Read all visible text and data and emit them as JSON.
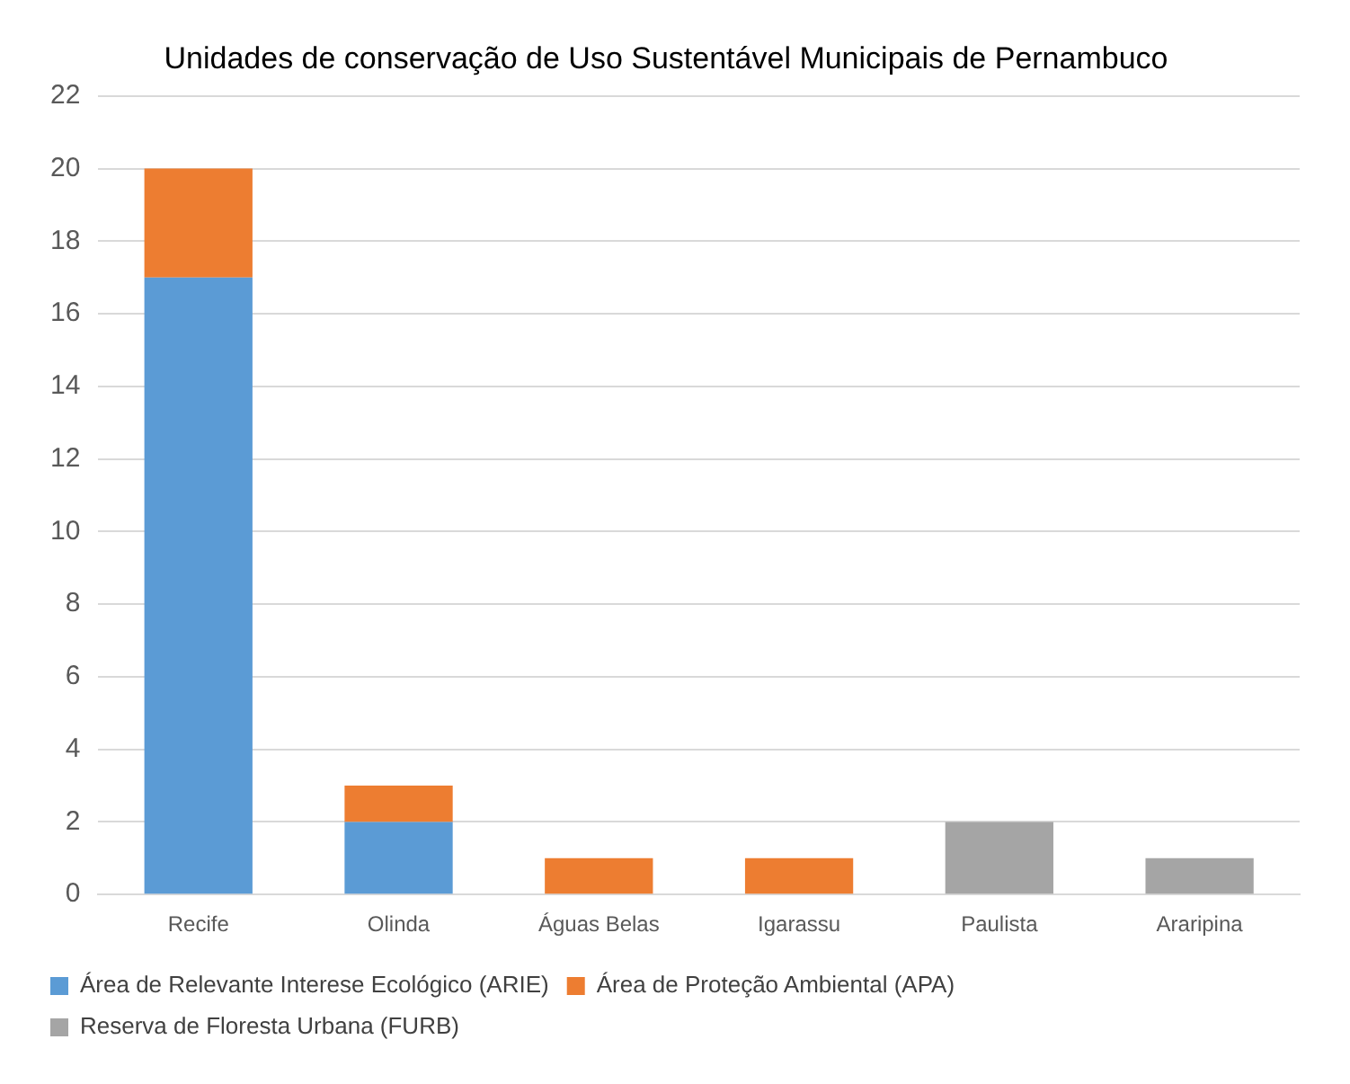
{
  "chart_data": {
    "type": "bar",
    "title": "Unidades de conservação de Uso Sustentável Municipais de Pernambuco",
    "stacked": true,
    "categories": [
      "Recife",
      "Olinda",
      "Águas Belas",
      "Igarassu",
      "Paulista",
      "Araripina"
    ],
    "series": [
      {
        "name": "Área de Relevante Interese Ecológico (ARIE)",
        "color": "#5b9bd5",
        "values": [
          17,
          2,
          null,
          null,
          null,
          null
        ]
      },
      {
        "name": "Área de Proteção Ambiental (APA)",
        "color": "#ed7d31",
        "values": [
          3,
          1,
          1,
          1,
          null,
          null
        ]
      },
      {
        "name": "Reserva de Floresta Urbana (FURB)",
        "color": "#a5a5a5",
        "values": [
          null,
          null,
          null,
          null,
          2,
          1
        ]
      }
    ],
    "ylim": [
      0,
      22
    ],
    "yticks": [
      0,
      2,
      4,
      6,
      8,
      10,
      12,
      14,
      16,
      18,
      20,
      22
    ],
    "grid": "y",
    "legend": "bottom"
  }
}
